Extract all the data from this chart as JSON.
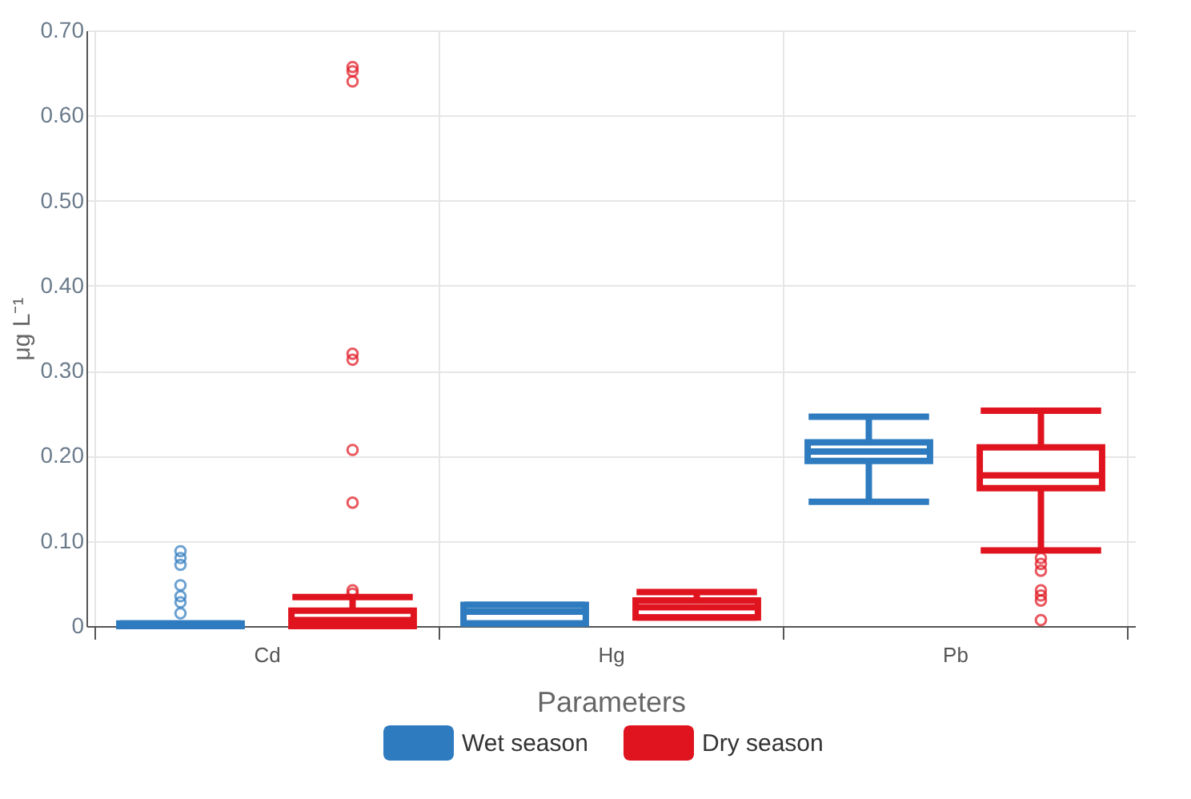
{
  "chart_data": {
    "type": "box",
    "xlabel": "Parameters",
    "ylabel": "μg L⁻¹",
    "categories": [
      "Cd",
      "Hg",
      "Pb"
    ],
    "ylim": [
      0,
      0.7
    ],
    "yticks": [
      0,
      {
        "value": 0.1,
        "label": "0.10"
      },
      {
        "value": 0.2,
        "label": "0.20"
      },
      {
        "value": 0.3,
        "label": "0.30"
      },
      {
        "value": 0.4,
        "label": "0.40"
      },
      {
        "value": 0.5,
        "label": "0.50"
      },
      {
        "value": 0.6,
        "label": "0.60"
      },
      {
        "value": 0.7,
        "label": "0.70"
      }
    ],
    "grid": true,
    "legend": "bottom",
    "marker": "circle",
    "series": [
      {
        "name": "Wet season",
        "color": "#2e7bbf",
        "boxes": [
          {
            "low": 0,
            "q1": 0,
            "median": 0.001,
            "q3": 0.003,
            "high": 0.003,
            "outliers": [
              0.015,
              0.028,
              0.035,
              0.048,
              0.072,
              0.08,
              0.088
            ]
          },
          {
            "low": 0.003,
            "q1": 0.003,
            "median": 0.017,
            "q3": 0.025,
            "high": 0.025
          },
          {
            "low": 0.146,
            "q1": 0.194,
            "median": 0.205,
            "q3": 0.216,
            "high": 0.246
          }
        ]
      },
      {
        "name": "Dry season",
        "color": "#e0141e",
        "boxes": [
          {
            "low": 0,
            "q1": 0,
            "median": 0.007,
            "q3": 0.018,
            "high": 0.034,
            "outliers": [
              0.038,
              0.042,
              0.145,
              0.207,
              0.313,
              0.32,
              0.64,
              0.652,
              0.657
            ]
          },
          {
            "low": 0.01,
            "q1": 0.01,
            "median": 0.022,
            "q3": 0.03,
            "high": 0.04
          },
          {
            "low": 0.089,
            "q1": 0.162,
            "median": 0.177,
            "q3": 0.21,
            "high": 0.253,
            "outliers": [
              0.007,
              0.03,
              0.036,
              0.042,
              0.065,
              0.073,
              0.08
            ]
          }
        ]
      }
    ]
  }
}
